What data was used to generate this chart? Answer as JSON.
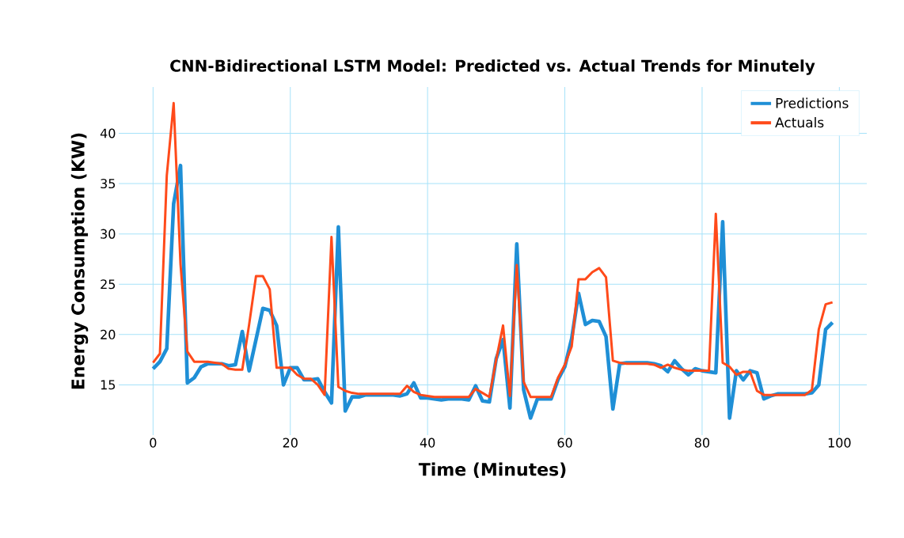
{
  "chart_data": {
    "type": "line",
    "title": "CNN-Bidirectional LSTM Model: Predicted vs. Actual Trends for Minutely",
    "xlabel": "Time (Minutes)",
    "ylabel": "Energy Consumption (KW)",
    "x": [
      0,
      1,
      2,
      3,
      4,
      5,
      6,
      7,
      8,
      9,
      10,
      11,
      12,
      13,
      14,
      15,
      16,
      17,
      18,
      19,
      20,
      21,
      22,
      23,
      24,
      25,
      26,
      27,
      28,
      29,
      30,
      31,
      32,
      33,
      34,
      35,
      36,
      37,
      38,
      39,
      40,
      41,
      42,
      43,
      44,
      45,
      46,
      47,
      48,
      49,
      50,
      51,
      52,
      53,
      54,
      55,
      56,
      57,
      58,
      59,
      60,
      61,
      62,
      63,
      64,
      65,
      66,
      67,
      68,
      69,
      70,
      71,
      72,
      73,
      74,
      75,
      76,
      77,
      78,
      79,
      80,
      81,
      82,
      83,
      84,
      85,
      86,
      87,
      88,
      89,
      90,
      91,
      92,
      93,
      94,
      95,
      96,
      97,
      98,
      99
    ],
    "series": [
      {
        "name": "Predictions",
        "color": "#1f8fd6",
        "values": [
          16.6,
          17.3,
          18.6,
          33,
          36.8,
          15.2,
          15.7,
          16.8,
          17.1,
          17.1,
          17.1,
          16.9,
          17,
          20.3,
          16.4,
          19.5,
          22.6,
          22.4,
          20.9,
          15,
          16.7,
          16.7,
          15.5,
          15.5,
          15.6,
          14.3,
          13.2,
          30.7,
          12.4,
          13.8,
          13.8,
          14,
          14,
          14,
          14,
          14,
          13.9,
          14.1,
          15.2,
          13.7,
          13.7,
          13.6,
          13.5,
          13.6,
          13.6,
          13.6,
          13.5,
          14.9,
          13.4,
          13.3,
          17.6,
          19.5,
          12.7,
          29,
          14.5,
          11.7,
          13.6,
          13.6,
          13.6,
          15.5,
          16.8,
          19.6,
          24.1,
          21,
          21.4,
          21.3,
          19.8,
          12.6,
          17.1,
          17.2,
          17.2,
          17.2,
          17.2,
          17.1,
          16.9,
          16.3,
          17.4,
          16.6,
          16,
          16.6,
          16.4,
          16.3,
          16.2,
          31.2,
          11.7,
          16.4,
          15.5,
          16.4,
          16.2,
          13.6,
          13.9,
          14.1,
          14.1,
          14.1,
          14.1,
          14.1,
          14.2,
          15,
          20.5,
          21.2
        ]
      },
      {
        "name": "Actuals",
        "color": "#ff4a1a",
        "values": [
          17.2,
          18.1,
          35.8,
          43,
          27,
          18.3,
          17.3,
          17.3,
          17.3,
          17.2,
          17.1,
          16.6,
          16.5,
          16.5,
          21,
          25.8,
          25.8,
          24.5,
          16.7,
          16.7,
          16.7,
          16,
          15.6,
          15.6,
          15,
          14,
          29.7,
          14.8,
          14.4,
          14.2,
          14.1,
          14.1,
          14.1,
          14.1,
          14.1,
          14.1,
          14.1,
          14.9,
          14.3,
          14,
          13.9,
          13.8,
          13.8,
          13.8,
          13.8,
          13.8,
          13.8,
          14.6,
          14.2,
          13.8,
          17.5,
          20.9,
          13.9,
          26.9,
          15.3,
          13.8,
          13.8,
          13.8,
          13.8,
          15.7,
          17,
          18.8,
          25.5,
          25.5,
          26.2,
          26.6,
          25.7,
          17.4,
          17.2,
          17.1,
          17.1,
          17.1,
          17.1,
          17,
          16.7,
          17,
          16.7,
          16.5,
          16.4,
          16.4,
          16.4,
          16.4,
          32,
          17.2,
          16.8,
          16,
          16.3,
          16.3,
          14.4,
          14,
          14,
          14,
          14,
          14,
          14,
          14,
          14.5,
          20.5,
          23,
          23.2
        ]
      }
    ],
    "xlim": [
      -5,
      104
    ],
    "ylim": [
      10,
      44.6
    ],
    "xticks": [
      0,
      20,
      40,
      60,
      80,
      100
    ],
    "yticks": [
      15,
      20,
      25,
      30,
      35,
      40
    ],
    "grid": true,
    "legend": "top right",
    "line_style": "solid",
    "marker": "none"
  }
}
